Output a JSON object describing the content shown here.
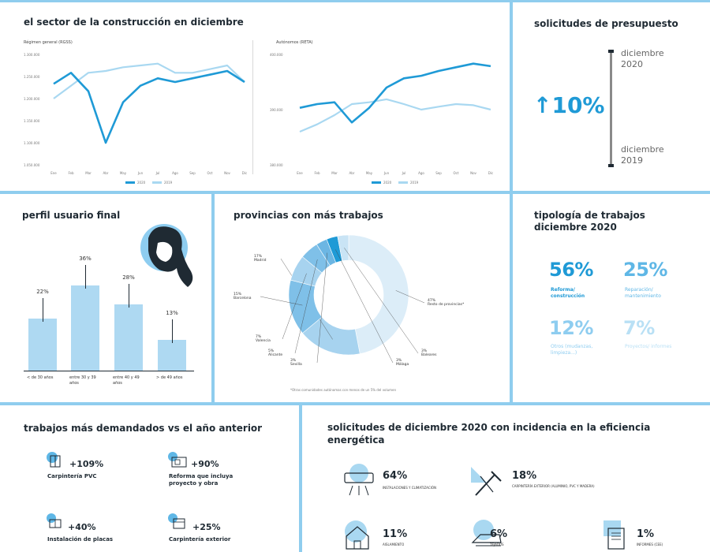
{
  "sector": {
    "title": "el sector de la construcción en diciembre",
    "chart1_label": "Régimen general (RGSS)",
    "chart2_label": "Autónomos (RETA)",
    "months": [
      "Ene",
      "Feb",
      "Mar",
      "Abr",
      "May",
      "Jun",
      "Jul",
      "Ago",
      "Sep",
      "Oct",
      "Nov",
      "Dic"
    ],
    "legend_2020": "2020",
    "legend_2019": "2019",
    "y1_ticks": [
      "1.300.000",
      "1.250.000",
      "1.200.000",
      "1.150.000",
      "1.100.000",
      "1.050.000"
    ],
    "y2_ticks": [
      "400.000",
      "390.000",
      "380.000"
    ]
  },
  "chart_data": [
    {
      "type": "line",
      "title": "Régimen general (RGSS)",
      "categories": [
        "Ene",
        "Feb",
        "Mar",
        "Abr",
        "May",
        "Jun",
        "Jul",
        "Ago",
        "Sep",
        "Oct",
        "Nov",
        "Dic"
      ],
      "ylim": [
        1000000,
        1300000
      ],
      "series": [
        {
          "name": "2020",
          "color": "#1f9ad6",
          "values": [
            1220000,
            1250000,
            1200000,
            1060000,
            1170000,
            1215000,
            1235000,
            1225000,
            1235000,
            1245000,
            1255000,
            1225000
          ]
        },
        {
          "name": "2019",
          "color": "#a9d8f1",
          "values": [
            1180000,
            1215000,
            1250000,
            1255000,
            1265000,
            1270000,
            1275000,
            1250000,
            1250000,
            1260000,
            1270000,
            1225000
          ]
        }
      ]
    },
    {
      "type": "line",
      "title": "Autónomos (RETA)",
      "categories": [
        "Ene",
        "Feb",
        "Mar",
        "Abr",
        "May",
        "Jun",
        "Jul",
        "Ago",
        "Sep",
        "Oct",
        "Nov",
        "Dic"
      ],
      "ylim": [
        375000,
        405000
      ],
      "series": [
        {
          "name": "2020",
          "color": "#1f9ad6",
          "values": [
            390500,
            391500,
            392000,
            386500,
            390500,
            396000,
            398500,
            399200,
            400500,
            401500,
            402500,
            401800
          ]
        },
        {
          "name": "2019",
          "color": "#a9d8f1",
          "values": [
            384000,
            386000,
            388500,
            391500,
            392000,
            392800,
            391500,
            390000,
            390800,
            391500,
            391200,
            390000
          ]
        }
      ]
    }
  ],
  "solicitudes": {
    "title": "solicitudes de presupuesto",
    "value": "↑10%",
    "top_label": "diciembre 2020",
    "bottom_label": "diciembre 2019"
  },
  "perfil": {
    "title": "perfil usuario final",
    "bars": [
      {
        "pct": "22%",
        "value": 22,
        "label": "< de 30 años"
      },
      {
        "pct": "36%",
        "value": 36,
        "label": "entre 30 y 39 años"
      },
      {
        "pct": "28%",
        "value": 28,
        "label": "entre 40 y 49 años"
      },
      {
        "pct": "13%",
        "value": 13,
        "label": "> de 49 años"
      }
    ]
  },
  "provincias": {
    "title": "provincias con más trabajos",
    "footnote": "*Otras comunidades autónomas con menos de un 5% del volumen",
    "segments": [
      {
        "label": "Resto de provincias*",
        "pct": "47%",
        "value": 47,
        "color": "#dcedf8"
      },
      {
        "label": "Madrid",
        "pct": "17%",
        "value": 17,
        "color": "#a7d3ef"
      },
      {
        "label": "Barcelona",
        "pct": "15%",
        "value": 15,
        "color": "#7fc0e8"
      },
      {
        "label": "Valencia",
        "pct": "7%",
        "value": 7,
        "color": "#a7d3ef"
      },
      {
        "label": "Alicante",
        "pct": "5%",
        "value": 5,
        "color": "#7fc0e8"
      },
      {
        "label": "Sevilla",
        "pct": "3%",
        "value": 3,
        "color": "#6cb6e3"
      },
      {
        "label": "Málaga",
        "pct": "3%",
        "value": 3,
        "color": "#1f9ad6"
      },
      {
        "label": "Baleares",
        "pct": "3%",
        "value": 3,
        "color": "#c9e4f5"
      }
    ]
  },
  "tipologia": {
    "title": "tipología de trabajos diciembre 2020",
    "items": [
      {
        "pct": "56%",
        "label": "Reforma/ construcción"
      },
      {
        "pct": "25%",
        "label": "Reparación/ mantenimiento"
      },
      {
        "pct": "12%",
        "label": "Otros (mudanzas, limpieza...)"
      },
      {
        "pct": "7%",
        "label": "Proyectos/ informes"
      }
    ]
  },
  "demandados": {
    "title": "trabajos más demandados vs el año anterior",
    "items": [
      {
        "pct": "+109%",
        "label": "Carpintería PVC",
        "icon": "window-icon"
      },
      {
        "pct": "+90%",
        "label": "Reforma que incluya proyecto y obra",
        "icon": "blueprint-icon"
      },
      {
        "pct": "+40%",
        "label": "Instalación de placas",
        "icon": "panel-icon"
      },
      {
        "pct": "+25%",
        "label": "Carpintería exterior",
        "icon": "door-icon"
      }
    ]
  },
  "eficiencia": {
    "title": "solicitudes de diciembre 2020 con incidencia en la eficiencia energética",
    "items": [
      {
        "pct": "64%",
        "label": "Instalaciones y climatización",
        "icon": "air-conditioner-icon"
      },
      {
        "pct": "18%",
        "label": "Carpintería exterior (aluminio, PVC y madera)",
        "icon": "tools-icon"
      },
      {
        "pct": "11%",
        "label": "Aislamiento",
        "icon": "house-icon"
      },
      {
        "pct": "6%",
        "label": "Tejados",
        "icon": "roof-icon"
      },
      {
        "pct": "1%",
        "label": "Informes (CEE)",
        "icon": "certificate-icon"
      }
    ]
  }
}
